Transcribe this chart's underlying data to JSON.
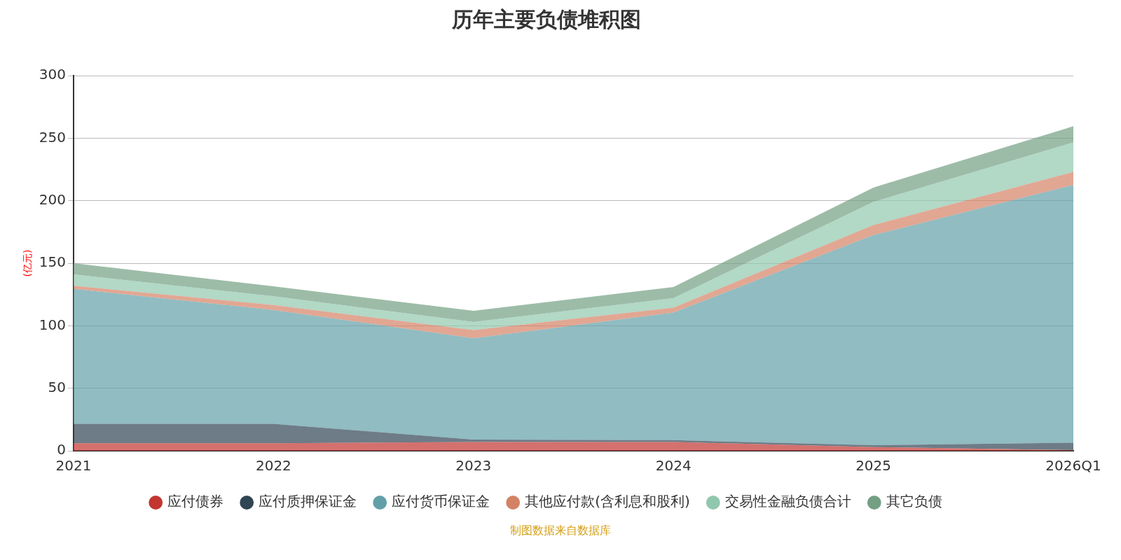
{
  "chart_data": {
    "type": "area",
    "title": "历年主要负债堆积图",
    "ylabel": "(亿元)",
    "stacked": true,
    "grid": "y",
    "legend": "bottom",
    "marker": "none",
    "categories": [
      "2021",
      "2022",
      "2023",
      "2024",
      "2025",
      "2026Q1"
    ],
    "ylim": [
      0,
      300
    ],
    "yticks": [
      0,
      50,
      100,
      150,
      200,
      250,
      300
    ],
    "series": [
      {
        "name": "应付债券",
        "color": "#c23531",
        "values": [
          6,
          6,
          7,
          7,
          3,
          0.5
        ]
      },
      {
        "name": "应付质押保证金",
        "color": "#2f4554",
        "values": [
          15.5,
          15.5,
          2,
          1.5,
          1.5,
          6
        ]
      },
      {
        "name": "应付货币保证金",
        "color": "#61a0a8",
        "values": [
          108,
          91,
          81,
          102,
          168,
          206
        ]
      },
      {
        "name": "其他应付款(含利息和股利)",
        "color": "#d48265",
        "values": [
          2.5,
          4,
          6.5,
          4,
          8,
          10.5
        ]
      },
      {
        "name": "交易性金融负债合计",
        "color": "#91c7ae",
        "values": [
          9,
          7,
          6.5,
          7.5,
          18.5,
          23.5
        ]
      },
      {
        "name": "其它负债",
        "color": "#749f83",
        "values": [
          9,
          8,
          9,
          9,
          11.5,
          13
        ]
      }
    ],
    "annotations": [
      "制图数据来自数据库"
    ]
  }
}
